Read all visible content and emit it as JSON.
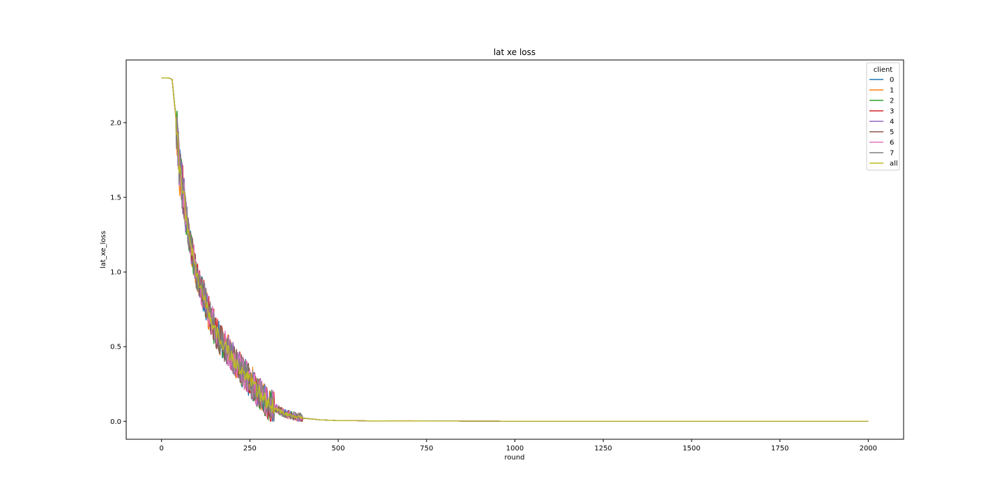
{
  "chart_data": {
    "type": "line",
    "title": "lat xe loss",
    "xlabel": "round",
    "ylabel": "lat_xe_loss",
    "xlim": [
      -100,
      2100
    ],
    "ylim": [
      -0.12,
      2.42
    ],
    "xticks": [
      0,
      250,
      500,
      750,
      1000,
      1250,
      1500,
      1750,
      2000
    ],
    "xtick_labels": [
      "0",
      "250",
      "500",
      "750",
      "1000",
      "1250",
      "1500",
      "1750",
      "2000"
    ],
    "yticks": [
      0.0,
      0.5,
      1.0,
      1.5,
      2.0
    ],
    "ytick_labels": [
      "0.0",
      "0.5",
      "1.0",
      "1.5",
      "2.0"
    ],
    "grid": false,
    "legend": {
      "title": "client",
      "position": "top-right"
    },
    "x": [
      0,
      20,
      30,
      40,
      50,
      75,
      100,
      150,
      200,
      250,
      300,
      350,
      400,
      450,
      500,
      600,
      700,
      750,
      1000,
      1500,
      2000
    ],
    "series": [
      {
        "name": "0",
        "color": "#1f77b4",
        "values": [
          2.3,
          2.3,
          2.29,
          2.05,
          1.72,
          1.28,
          0.97,
          0.62,
          0.42,
          0.27,
          0.12,
          0.05,
          0.022,
          0.01,
          0.005,
          0.003,
          0.003,
          0.002,
          0.001,
          0.001,
          0.001
        ]
      },
      {
        "name": "1",
        "color": "#ff7f0e",
        "values": [
          2.3,
          2.3,
          2.29,
          2.04,
          1.7,
          1.3,
          0.95,
          0.61,
          0.43,
          0.28,
          0.12,
          0.05,
          0.021,
          0.01,
          0.005,
          0.003,
          0.003,
          0.002,
          0.001,
          0.001,
          0.001
        ]
      },
      {
        "name": "2",
        "color": "#2ca02c",
        "values": [
          2.3,
          2.3,
          2.29,
          2.06,
          1.71,
          1.27,
          0.96,
          0.6,
          0.41,
          0.27,
          0.11,
          0.05,
          0.02,
          0.01,
          0.005,
          0.003,
          0.003,
          0.002,
          0.001,
          0.001,
          0.001
        ]
      },
      {
        "name": "3",
        "color": "#d62728",
        "values": [
          2.3,
          2.3,
          2.29,
          2.05,
          1.73,
          1.29,
          0.98,
          0.63,
          0.42,
          0.28,
          0.12,
          0.05,
          0.022,
          0.01,
          0.005,
          0.003,
          0.003,
          0.002,
          0.001,
          0.001,
          0.001
        ]
      },
      {
        "name": "4",
        "color": "#9467bd",
        "values": [
          2.3,
          2.3,
          2.29,
          2.04,
          1.72,
          1.28,
          0.96,
          0.62,
          0.43,
          0.27,
          0.12,
          0.05,
          0.021,
          0.01,
          0.005,
          0.003,
          0.003,
          0.002,
          0.001,
          0.001,
          0.001
        ]
      },
      {
        "name": "5",
        "color": "#8c564b",
        "values": [
          2.3,
          2.3,
          2.29,
          2.05,
          1.71,
          1.29,
          0.97,
          0.61,
          0.42,
          0.28,
          0.12,
          0.05,
          0.022,
          0.01,
          0.005,
          0.003,
          0.003,
          0.002,
          0.001,
          0.001,
          0.001
        ]
      },
      {
        "name": "6",
        "color": "#e377c2",
        "values": [
          2.3,
          2.3,
          2.29,
          2.05,
          1.72,
          1.3,
          0.97,
          0.62,
          0.42,
          0.27,
          0.12,
          0.05,
          0.021,
          0.01,
          0.005,
          0.003,
          0.004,
          0.002,
          0.001,
          0.001,
          0.001
        ]
      },
      {
        "name": "7",
        "color": "#7f7f7f",
        "values": [
          2.3,
          2.3,
          2.29,
          2.05,
          1.72,
          1.28,
          0.97,
          0.62,
          0.42,
          0.27,
          0.12,
          0.05,
          0.022,
          0.01,
          0.005,
          0.003,
          0.003,
          0.002,
          0.001,
          0.001,
          0.001
        ]
      },
      {
        "name": "all",
        "color": "#bcbd22",
        "values": [
          2.3,
          2.3,
          2.29,
          2.05,
          1.72,
          1.28,
          0.96,
          0.62,
          0.42,
          0.27,
          0.12,
          0.05,
          0.021,
          0.01,
          0.005,
          0.003,
          0.003,
          0.002,
          0.001,
          0.001,
          0.001
        ]
      }
    ]
  }
}
